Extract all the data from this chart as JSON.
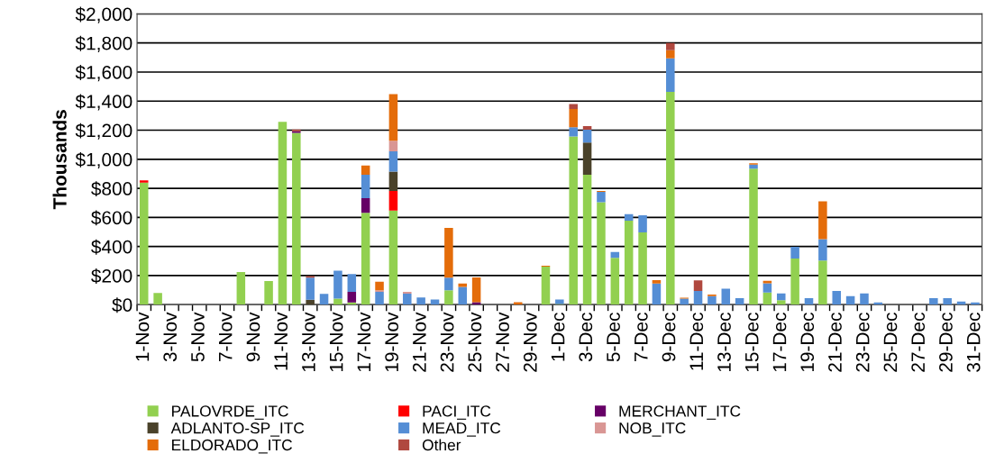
{
  "chart_data": {
    "type": "bar",
    "stacked": true,
    "ylabel": "Thousands",
    "categories": [
      "1-Nov",
      null,
      "3-Nov",
      null,
      "5-Nov",
      null,
      "7-Nov",
      null,
      "9-Nov",
      null,
      "11-Nov",
      null,
      "13-Nov",
      null,
      "15-Nov",
      null,
      "17-Nov",
      null,
      "19-Nov",
      null,
      "21-Nov",
      null,
      "23-Nov",
      null,
      "25-Nov",
      null,
      "27-Nov",
      null,
      "29-Nov",
      null,
      "1-Dec",
      null,
      "3-Dec",
      null,
      "5-Dec",
      null,
      "7-Dec",
      null,
      "9-Dec",
      null,
      "11-Dec",
      null,
      "13-Dec",
      null,
      "15-Dec",
      null,
      "17-Dec",
      null,
      "19-Dec",
      null,
      "21-Dec",
      null,
      "23-Dec",
      null,
      "25-Dec",
      null,
      "27-Dec",
      null,
      "29-Dec",
      null,
      "31-Dec"
    ],
    "series": [
      {
        "name": "PALOVRDE_ITC",
        "color": "#92d050",
        "values": [
          840,
          80,
          0,
          0,
          0,
          0,
          0,
          225,
          0,
          162,
          1258,
          1182,
          0,
          0,
          42,
          15,
          631,
          0,
          648,
          0,
          0,
          0,
          99,
          0,
          0,
          0,
          0,
          0,
          0,
          261,
          5,
          1157,
          894,
          705,
          322,
          577,
          497,
          0,
          1464,
          0,
          0,
          0,
          0,
          0,
          935,
          84,
          31,
          318,
          0,
          303,
          0,
          0,
          0,
          0,
          0,
          0,
          0,
          0,
          0,
          0,
          0
        ]
      },
      {
        "name": "PACI_ITC",
        "color": "#ff0000",
        "values": [
          15,
          0,
          0,
          0,
          0,
          0,
          0,
          0,
          0,
          0,
          0,
          0,
          0,
          0,
          0,
          0,
          0,
          0,
          134,
          0,
          0,
          0,
          0,
          0,
          0,
          0,
          0,
          0,
          0,
          0,
          0,
          0,
          0,
          0,
          0,
          0,
          0,
          0,
          0,
          0,
          0,
          0,
          0,
          0,
          0,
          0,
          0,
          0,
          0,
          0,
          0,
          0,
          0,
          0,
          0,
          0,
          0,
          0,
          0,
          0,
          0
        ]
      },
      {
        "name": "MERCHANT_ITC",
        "color": "#660066",
        "values": [
          0,
          0,
          0,
          0,
          0,
          0,
          0,
          0,
          0,
          0,
          0,
          11,
          0,
          0,
          0,
          73,
          101,
          0,
          0,
          0,
          0,
          0,
          0,
          0,
          17,
          0,
          0,
          0,
          0,
          0,
          0,
          0,
          0,
          0,
          0,
          0,
          0,
          0,
          0,
          0,
          0,
          0,
          0,
          0,
          0,
          0,
          0,
          0,
          0,
          0,
          0,
          0,
          0,
          0,
          0,
          0,
          0,
          0,
          0,
          0,
          0
        ]
      },
      {
        "name": "ADLANTO-SP_ITC",
        "color": "#4a422a",
        "values": [
          0,
          0,
          0,
          0,
          0,
          0,
          0,
          0,
          0,
          0,
          0,
          0,
          34,
          0,
          0,
          0,
          0,
          0,
          133,
          null,
          0,
          0,
          0,
          0,
          0,
          0,
          0,
          0,
          0,
          0,
          0,
          0,
          221,
          0,
          0,
          0,
          0,
          0,
          0,
          0,
          0,
          0,
          0,
          0,
          0,
          0,
          0,
          0,
          0,
          0,
          0,
          0,
          0,
          0,
          0,
          0,
          0,
          0,
          0,
          0,
          0
        ]
      },
      {
        "name": "MEAD_ITC",
        "color": "#558ed5",
        "values": [
          0,
          0,
          0,
          0,
          0,
          0,
          0,
          0,
          0,
          0,
          0,
          0,
          151,
          74,
          191,
          123,
          162,
          88,
          139,
          75,
          49,
          36,
          86,
          122,
          0,
          0,
          0,
          0,
          0,
          0,
          31,
          63,
          88,
          71,
          40,
          46,
          118,
          145,
          231,
          42,
          95,
          58,
          110,
          44,
          29,
          63,
          46,
          80,
          44,
          148,
          95,
          58,
          77,
          15,
          0,
          0,
          0,
          44,
          44,
          22,
          15
        ]
      },
      {
        "name": "NOB_ITC",
        "color": "#d99694",
        "values": [
          0,
          0,
          0,
          0,
          0,
          0,
          0,
          0,
          0,
          0,
          0,
          0,
          0,
          0,
          0,
          0,
          0,
          11,
          73,
          13,
          0,
          0,
          0,
          0,
          0,
          0,
          0,
          0,
          0,
          0,
          0,
          0,
          0,
          0,
          0,
          0,
          0,
          0,
          0,
          0,
          0,
          0,
          0,
          0,
          0,
          0,
          0,
          0,
          0,
          0,
          0,
          0,
          0,
          0,
          0,
          0,
          0,
          0,
          0,
          0,
          0
        ]
      },
      {
        "name": "ELDORADO_ITC",
        "color": "#e46c0a",
        "values": [
          0,
          0,
          0,
          0,
          0,
          0,
          0,
          0,
          0,
          0,
          0,
          0,
          0,
          0,
          0,
          0,
          63,
          59,
          321,
          0,
          0,
          0,
          343,
          23,
          170,
          0,
          0,
          17,
          0,
          6,
          0,
          126,
          0,
          6,
          0,
          0,
          0,
          23,
          55,
          6,
          0,
          11,
          0,
          0,
          9,
          17,
          0,
          0,
          0,
          259,
          0,
          0,
          0,
          0,
          0,
          0,
          0,
          0,
          0,
          0,
          0
        ]
      },
      {
        "name": "Other",
        "color": "#b0483f",
        "values": [
          0,
          0,
          0,
          0,
          0,
          0,
          0,
          0,
          0,
          0,
          0,
          12,
          11,
          0,
          0,
          0,
          0,
          0,
          0,
          0,
          0,
          0,
          0,
          0,
          0,
          0,
          0,
          0,
          0,
          0,
          0,
          34,
          25,
          0,
          0,
          0,
          0,
          0,
          50,
          0,
          72,
          0,
          0,
          0,
          0,
          0,
          0,
          0,
          0,
          0,
          0,
          0,
          0,
          0,
          0,
          0,
          0,
          0,
          0,
          0,
          0
        ]
      }
    ],
    "ylim": [
      0,
      2000
    ],
    "yticks": [
      {
        "value": 0,
        "label": "$0"
      },
      {
        "value": 200,
        "label": "$200"
      },
      {
        "value": 400,
        "label": "$400"
      },
      {
        "value": 600,
        "label": "$600"
      },
      {
        "value": 800,
        "label": "$800"
      },
      {
        "value": 1000,
        "label": "$1,000"
      },
      {
        "value": 1200,
        "label": "$1,200"
      },
      {
        "value": 1400,
        "label": "$1,400"
      },
      {
        "value": 1600,
        "label": "$1,600"
      },
      {
        "value": 1800,
        "label": "$1,800"
      },
      {
        "value": 2000,
        "label": "$2,000"
      }
    ],
    "grid": "y",
    "legend": "bottom"
  }
}
